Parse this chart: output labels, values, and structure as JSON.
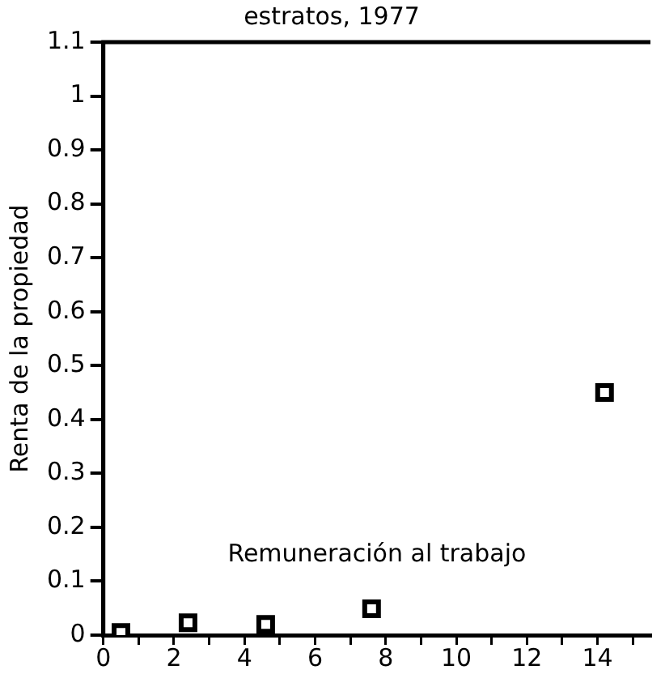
{
  "chart_data": {
    "type": "scatter",
    "title": "estratos, 1977",
    "xlabel": "Remuneración al trabajo",
    "ylabel": "Renta de la propiedad",
    "x": [
      0.5,
      2.4,
      4.6,
      7.6,
      14.2
    ],
    "values": [
      0.005,
      0.023,
      0.02,
      0.049,
      0.45
    ],
    "color": "#000000",
    "marker": "square",
    "xlim": [
      0,
      15.5
    ],
    "xticks": [
      0,
      {
        "value": 1,
        "label": null
      },
      2,
      {
        "value": 3,
        "label": null
      },
      4,
      {
        "value": 5,
        "label": null
      },
      6,
      {
        "value": 7,
        "label": null
      },
      8,
      {
        "value": 9,
        "label": null
      },
      10,
      {
        "value": 11,
        "label": null
      },
      12,
      {
        "value": 13,
        "label": null
      },
      14,
      {
        "value": 15,
        "label": null
      }
    ],
    "ylim": [
      0,
      1.1
    ],
    "yticks": [
      0,
      0.1,
      0.2,
      0.3,
      0.4,
      0.5,
      0.6,
      0.7,
      0.8,
      0.9,
      1,
      1.1
    ],
    "grid": false,
    "legend": false
  }
}
